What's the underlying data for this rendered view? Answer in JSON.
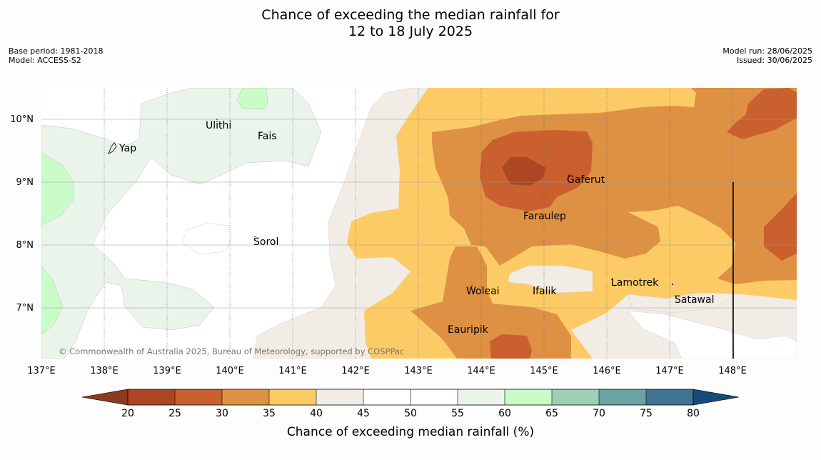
{
  "header": {
    "title_line1": "Chance of exceeding the median rainfall for",
    "title_line2": "12 to 18 July 2025",
    "base_period": "Base period: 1981-2018",
    "model": "Model: ACCESS-S2",
    "model_run": "Model run: 28/06/2025",
    "issued": "Issued: 30/06/2025"
  },
  "map": {
    "longitude_labels": [
      "137°E",
      "138°E",
      "139°E",
      "140°E",
      "141°E",
      "142°E",
      "143°E",
      "144°E",
      "145°E",
      "146°E",
      "147°E",
      "148°E"
    ],
    "latitude_labels": [
      "10°N",
      "9°N",
      "8°N",
      "7°N"
    ],
    "places": [
      "Yap",
      "Ulithi",
      "Fais",
      "Gaferut",
      "Faraulep",
      "Sorol",
      "Woleai",
      "Ifalik",
      "Lamotrek",
      "Satawal",
      "Eauripik"
    ],
    "copyright": "© Commonwealth of Australia 2025, Bureau of Meteorology, supported by COSPPac"
  },
  "legend": {
    "title": "Chance of exceeding median rainfall (%)",
    "ticks": [
      "20",
      "25",
      "30",
      "35",
      "40",
      "45",
      "50",
      "55",
      "60",
      "65",
      "70",
      "75",
      "80"
    ],
    "colors": {
      "lt20": "#8c3a1f",
      "b20_25": "#ad4623",
      "b25_30": "#c9602e",
      "b30_35": "#de9143",
      "b35_40": "#fdcb66",
      "b40_45": "#f1ece6",
      "b45_55": "#ffffff",
      "b55_60": "#eaf4ea",
      "b60_65": "#c9fcc9",
      "b65_70": "#9ed0b8",
      "b70_75": "#6ba3a3",
      "b75_80": "#3f7592",
      "gt80": "#164a78"
    }
  }
}
